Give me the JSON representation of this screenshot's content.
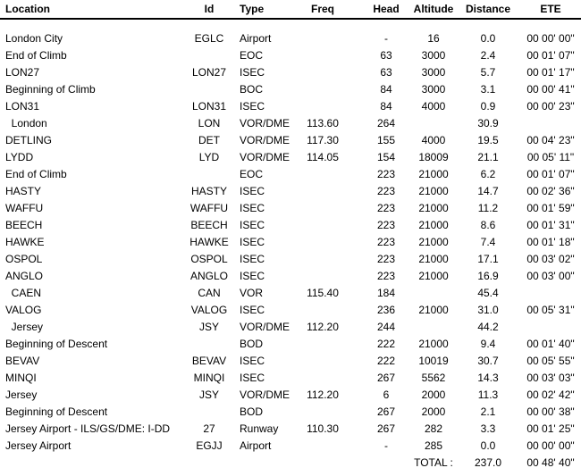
{
  "table": {
    "columns": [
      {
        "key": "location",
        "label": "Location"
      },
      {
        "key": "id",
        "label": "Id"
      },
      {
        "key": "type",
        "label": "Type"
      },
      {
        "key": "freq",
        "label": "Freq"
      },
      {
        "key": "head",
        "label": "Head"
      },
      {
        "key": "altitude",
        "label": "Altitude"
      },
      {
        "key": "distance",
        "label": "Distance"
      },
      {
        "key": "ete",
        "label": "ETE"
      }
    ],
    "rows": [
      {
        "location": "London City",
        "id": "EGLC",
        "type": "Airport",
        "freq": "",
        "head": "-",
        "altitude": "16",
        "distance": "0.0",
        "ete": "00 00' 00\""
      },
      {
        "location": "End of Climb",
        "id": "",
        "type": "EOC",
        "freq": "",
        "head": "63",
        "altitude": "3000",
        "distance": "2.4",
        "ete": "00 01' 07\""
      },
      {
        "location": "LON27",
        "id": "LON27",
        "type": "ISEC",
        "freq": "",
        "head": "63",
        "altitude": "3000",
        "distance": "5.7",
        "ete": "00 01' 17\""
      },
      {
        "location": "Beginning of Climb",
        "id": "",
        "type": "BOC",
        "freq": "",
        "head": "84",
        "altitude": "3000",
        "distance": "3.1",
        "ete": "00 00' 41\""
      },
      {
        "location": "LON31",
        "id": "LON31",
        "type": "ISEC",
        "freq": "",
        "head": "84",
        "altitude": "4000",
        "distance": "0.9",
        "ete": "00 00' 23\""
      },
      {
        "location": "  London",
        "id": "LON",
        "type": "VOR/DME",
        "freq": "113.60",
        "head": "264",
        "altitude": "",
        "distance": "30.9",
        "ete": ""
      },
      {
        "location": "DETLING",
        "id": "DET",
        "type": "VOR/DME",
        "freq": "117.30",
        "head": "155",
        "altitude": "4000",
        "distance": "19.5",
        "ete": "00 04' 23\""
      },
      {
        "location": "LYDD",
        "id": "LYD",
        "type": "VOR/DME",
        "freq": "114.05",
        "head": "154",
        "altitude": "18009",
        "distance": "21.1",
        "ete": "00 05' 11\""
      },
      {
        "location": "End of Climb",
        "id": "",
        "type": "EOC",
        "freq": "",
        "head": "223",
        "altitude": "21000",
        "distance": "6.2",
        "ete": "00 01' 07\""
      },
      {
        "location": "HASTY",
        "id": "HASTY",
        "type": "ISEC",
        "freq": "",
        "head": "223",
        "altitude": "21000",
        "distance": "14.7",
        "ete": "00 02' 36\""
      },
      {
        "location": "WAFFU",
        "id": "WAFFU",
        "type": "ISEC",
        "freq": "",
        "head": "223",
        "altitude": "21000",
        "distance": "11.2",
        "ete": "00 01' 59\""
      },
      {
        "location": "BEECH",
        "id": "BEECH",
        "type": "ISEC",
        "freq": "",
        "head": "223",
        "altitude": "21000",
        "distance": "8.6",
        "ete": "00 01' 31\""
      },
      {
        "location": "HAWKE",
        "id": "HAWKE",
        "type": "ISEC",
        "freq": "",
        "head": "223",
        "altitude": "21000",
        "distance": "7.4",
        "ete": "00 01' 18\""
      },
      {
        "location": "OSPOL",
        "id": "OSPOL",
        "type": "ISEC",
        "freq": "",
        "head": "223",
        "altitude": "21000",
        "distance": "17.1",
        "ete": "00 03' 02\""
      },
      {
        "location": "ANGLO",
        "id": "ANGLO",
        "type": "ISEC",
        "freq": "",
        "head": "223",
        "altitude": "21000",
        "distance": "16.9",
        "ete": "00 03' 00\""
      },
      {
        "location": "  CAEN",
        "id": "CAN",
        "type": "VOR",
        "freq": "115.40",
        "head": "184",
        "altitude": "",
        "distance": "45.4",
        "ete": ""
      },
      {
        "location": "VALOG",
        "id": "VALOG",
        "type": "ISEC",
        "freq": "",
        "head": "236",
        "altitude": "21000",
        "distance": "31.0",
        "ete": "00 05' 31\""
      },
      {
        "location": "  Jersey",
        "id": "JSY",
        "type": "VOR/DME",
        "freq": "112.20",
        "head": "244",
        "altitude": "",
        "distance": "44.2",
        "ete": ""
      },
      {
        "location": "Beginning of Descent",
        "id": "",
        "type": "BOD",
        "freq": "",
        "head": "222",
        "altitude": "21000",
        "distance": "9.4",
        "ete": "00 01' 40\""
      },
      {
        "location": "BEVAV",
        "id": "BEVAV",
        "type": "ISEC",
        "freq": "",
        "head": "222",
        "altitude": "10019",
        "distance": "30.7",
        "ete": "00 05' 55\""
      },
      {
        "location": "MINQI",
        "id": "MINQI",
        "type": "ISEC",
        "freq": "",
        "head": "267",
        "altitude": "5562",
        "distance": "14.3",
        "ete": "00 03' 03\""
      },
      {
        "location": "Jersey",
        "id": "JSY",
        "type": "VOR/DME",
        "freq": "112.20",
        "head": "6",
        "altitude": "2000",
        "distance": "11.3",
        "ete": "00 02' 42\""
      },
      {
        "location": "Beginning of Descent",
        "id": "",
        "type": "BOD",
        "freq": "",
        "head": "267",
        "altitude": "2000",
        "distance": "2.1",
        "ete": "00 00' 38\""
      },
      {
        "location": "Jersey Airport - ILS/GS/DME: I-DD",
        "id": "27",
        "type": "Runway",
        "freq": "110.30",
        "head": "267",
        "altitude": "282",
        "distance": "3.3",
        "ete": "00 01' 25\""
      },
      {
        "location": "Jersey Airport",
        "id": "EGJJ",
        "type": "Airport",
        "freq": "",
        "head": "-",
        "altitude": "285",
        "distance": "0.0",
        "ete": "00 00' 00\""
      }
    ],
    "total": {
      "location": "",
      "id": "",
      "type": "",
      "freq": "",
      "head": "",
      "altitude": "TOTAL :",
      "distance": "237.0",
      "ete": "00 48' 40\""
    }
  }
}
